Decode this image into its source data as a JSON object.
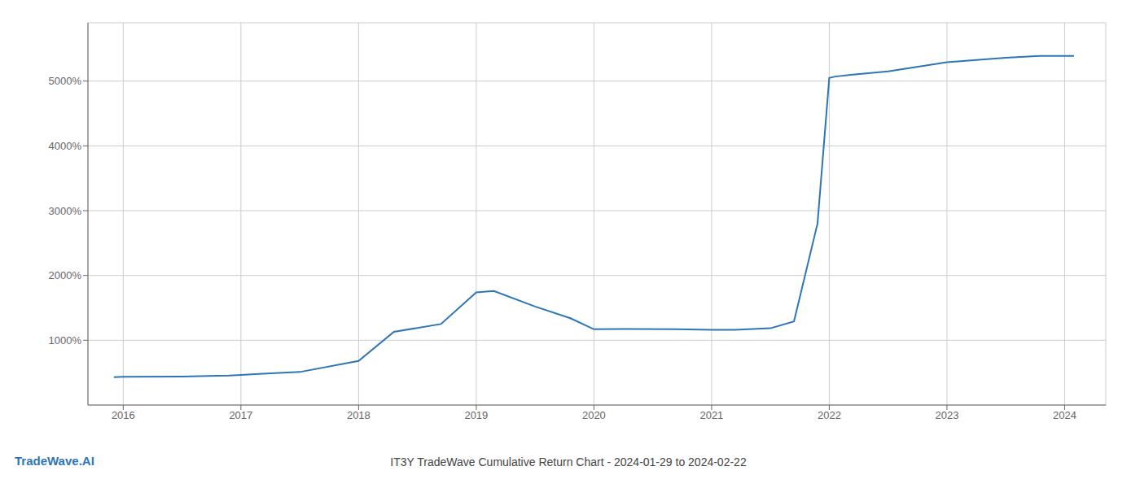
{
  "chart_data": {
    "type": "line",
    "title": "IT3Y TradeWave Cumulative Return Chart - 2024-01-29 to 2024-02-22",
    "annotations": [
      {
        "text": "TradeWave.AI",
        "color": "#2e75b6"
      }
    ],
    "x": [
      2015.92,
      2016.0,
      2016.5,
      2016.9,
      2017.0,
      2017.15,
      2017.5,
      2018.0,
      2018.3,
      2018.7,
      2019.0,
      2019.15,
      2019.5,
      2019.8,
      2020.0,
      2020.3,
      2020.7,
      2021.0,
      2021.1,
      2021.2,
      2021.5,
      2021.7,
      2021.9,
      2022.0,
      2022.05,
      2022.2,
      2022.5,
      2023.0,
      2023.5,
      2023.8,
      2024.0,
      2024.08
    ],
    "values": [
      430,
      435,
      440,
      455,
      465,
      480,
      510,
      680,
      1130,
      1250,
      1740,
      1760,
      1520,
      1340,
      1170,
      1175,
      1170,
      1160,
      1160,
      1160,
      1185,
      1290,
      2800,
      5050,
      5070,
      5100,
      5150,
      5290,
      5360,
      5390,
      5390,
      5390
    ],
    "color": "#2e75b6",
    "xlim": [
      2015.7,
      2024.35
    ],
    "ylim": [
      0,
      5900
    ],
    "xticks": [
      2016,
      2017,
      2018,
      2019,
      2020,
      2021,
      2022,
      2023,
      2024
    ],
    "yticks": [
      {
        "value": 1000,
        "label": "1000%"
      },
      {
        "value": 2000,
        "label": "2000%"
      },
      {
        "value": 3000,
        "label": "3000%"
      },
      {
        "value": 4000,
        "label": "4000%"
      },
      {
        "value": 5000,
        "label": "5000%"
      }
    ],
    "grid": true
  }
}
